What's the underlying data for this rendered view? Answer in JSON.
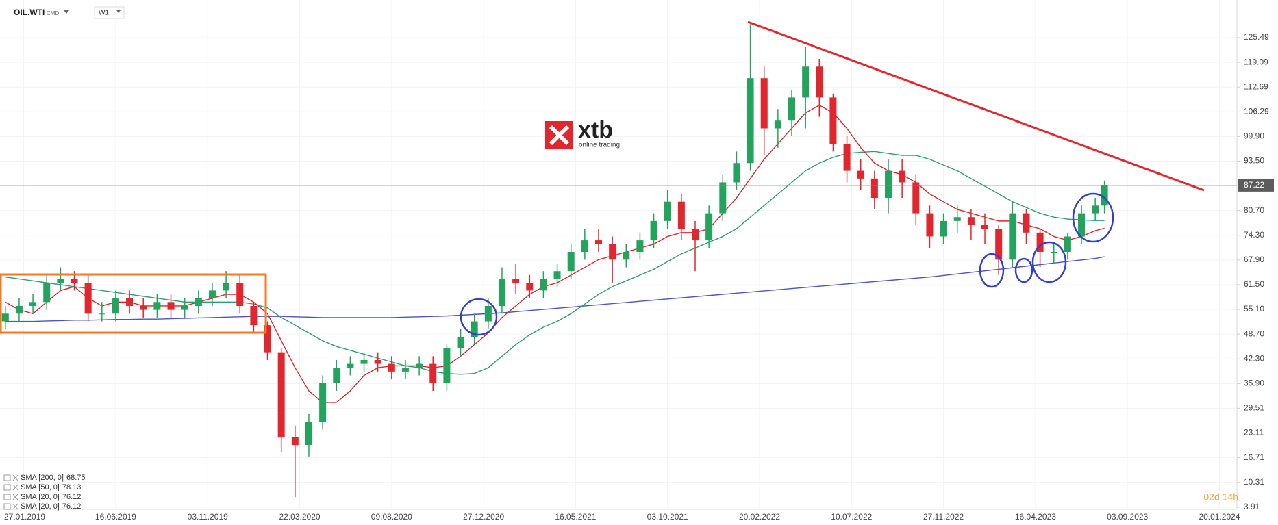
{
  "chart_data": {
    "type": "candlestick",
    "symbol": "OIL.WTI",
    "market": "CMD",
    "interval": "W1",
    "logo": {
      "name": "xtb",
      "tagline": "online trading"
    },
    "x": [
      0,
      3,
      6,
      9,
      12,
      15,
      18,
      21,
      24,
      27,
      30,
      33,
      36,
      39,
      42,
      45,
      48,
      51,
      54,
      57,
      60,
      63,
      66,
      69,
      72,
      75,
      78,
      81,
      84,
      87,
      90,
      93,
      96,
      99,
      102,
      105,
      108,
      111,
      114,
      117,
      120,
      123,
      126,
      129,
      132,
      135,
      138,
      141,
      144,
      147,
      150,
      153,
      156,
      159,
      162,
      165,
      168,
      171,
      174,
      177,
      180,
      183,
      186,
      189,
      192,
      195,
      198,
      201,
      204,
      207,
      210,
      213,
      216,
      219,
      222,
      225,
      228,
      231,
      234,
      237,
      239
    ],
    "open": [
      52,
      54,
      56,
      57,
      62,
      63,
      62,
      54,
      54,
      58,
      56,
      55,
      57,
      55,
      56,
      58,
      60,
      62,
      56,
      51,
      44,
      22,
      20,
      26,
      36,
      40,
      41,
      42,
      41,
      39,
      40,
      41,
      36,
      45,
      48,
      52,
      56,
      63,
      62,
      60,
      63,
      65,
      70,
      73,
      72,
      68,
      70,
      73,
      78,
      83,
      76,
      73,
      80,
      88,
      93,
      115,
      102,
      104,
      110,
      118,
      110,
      98,
      91,
      89,
      84,
      91,
      88,
      80,
      74,
      78,
      79,
      77,
      76,
      68,
      80,
      75,
      70,
      70,
      74,
      80,
      82
    ],
    "high": [
      56,
      58,
      59,
      64,
      66,
      65,
      64,
      57,
      60,
      60,
      58,
      59,
      59,
      58,
      60,
      62,
      65,
      64,
      57,
      52,
      45,
      25,
      28,
      38,
      42,
      43,
      44,
      44,
      43,
      42,
      43,
      43,
      46,
      50,
      54,
      58,
      66,
      67,
      64,
      65,
      67,
      72,
      76,
      76,
      74,
      72,
      75,
      80,
      86,
      85,
      78,
      82,
      90,
      96,
      129,
      118,
      107,
      112,
      123,
      120,
      111,
      100,
      94,
      91,
      94,
      94,
      90,
      82,
      80,
      82,
      81,
      80,
      77,
      83,
      81,
      76,
      72,
      75,
      82,
      84,
      88.5
    ],
    "low": [
      50,
      52,
      54,
      55,
      60,
      60,
      52,
      52,
      52,
      54,
      53,
      53,
      53,
      53,
      54,
      56,
      58,
      54,
      49,
      42,
      18,
      6.5,
      17,
      24,
      34,
      38,
      39,
      39,
      37,
      37,
      38,
      34,
      34,
      43,
      46,
      50,
      54,
      59,
      58,
      58,
      61,
      63,
      68,
      70,
      62,
      66,
      68,
      71,
      76,
      73,
      65,
      71,
      78,
      86,
      91,
      95,
      97,
      100,
      102,
      105,
      96,
      88,
      86,
      81,
      80,
      84,
      77,
      71,
      72,
      75,
      73,
      72,
      64,
      66,
      72,
      66,
      67,
      68,
      72,
      78,
      80
    ],
    "close": [
      54,
      56,
      57,
      62,
      63,
      62,
      54,
      54,
      58,
      56,
      55,
      57,
      55,
      56,
      58,
      60,
      62,
      56,
      51,
      44,
      22,
      20,
      26,
      36,
      40,
      41,
      42,
      41,
      39,
      40,
      41,
      36,
      45,
      48,
      52,
      56,
      63,
      62,
      60,
      63,
      65,
      70,
      73,
      72,
      68,
      70,
      73,
      78,
      83,
      76,
      73,
      80,
      88,
      93,
      115,
      102,
      104,
      110,
      118,
      110,
      98,
      91,
      89,
      84,
      91,
      88,
      80,
      74,
      78,
      79,
      77,
      76,
      68,
      80,
      75,
      70,
      70,
      74,
      80,
      82,
      87.22
    ],
    "up_color": "#22a45d",
    "down_color": "#e1262e",
    "sma": [
      {
        "color": "#4d55b8",
        "values": [
          52,
          52,
          52,
          52.1,
          52.2,
          52.3,
          52.3,
          52.4,
          52.5,
          52.5,
          52.6,
          52.6,
          52.7,
          52.8,
          52.9,
          53,
          53.1,
          53.2,
          53.3,
          53.3,
          53.3,
          53.2,
          53.1,
          53,
          53,
          53,
          53,
          53,
          53,
          53.1,
          53.2,
          53.3,
          53.4,
          53.6,
          53.8,
          54,
          54.2,
          54.5,
          54.8,
          55.1,
          55.4,
          55.7,
          56,
          56.3,
          56.6,
          56.9,
          57.2,
          57.5,
          57.8,
          58.1,
          58.4,
          58.7,
          59,
          59.3,
          59.6,
          59.9,
          60.2,
          60.5,
          60.8,
          61.1,
          61.4,
          61.7,
          62,
          62.3,
          62.6,
          62.9,
          63.2,
          63.5,
          63.9,
          64.3,
          64.7,
          65.1,
          65.5,
          65.9,
          66.3,
          66.7,
          67.1,
          67.5,
          67.9,
          68.3,
          68.75
        ]
      },
      {
        "color": "#2e9c78",
        "values": [
          63.5,
          63,
          62.5,
          62,
          61.5,
          61,
          60.5,
          60,
          59.5,
          59,
          58.5,
          58,
          57.5,
          57,
          57,
          57,
          57,
          57,
          56.5,
          55.5,
          53,
          51,
          49,
          47,
          45.5,
          44.5,
          43.5,
          42.5,
          41.5,
          40.5,
          40,
          39,
          38.5,
          38.3,
          38.5,
          40,
          43,
          46,
          48.5,
          50.5,
          52,
          54,
          56.5,
          59,
          61,
          62.5,
          64,
          65.5,
          67.5,
          69.5,
          71,
          72.5,
          74,
          76,
          79,
          82,
          85,
          88,
          91,
          93,
          94.5,
          95.5,
          95.8,
          96,
          95.5,
          95,
          95,
          94,
          92.5,
          91,
          89,
          87,
          85,
          83,
          81.5,
          80,
          79,
          78.5,
          78.3,
          78.1,
          78.13
        ]
      },
      {
        "color": "#d8262b",
        "values": [
          57,
          55,
          54,
          57,
          60,
          61,
          58,
          56,
          57,
          57,
          56,
          56,
          56,
          56,
          57,
          58,
          59,
          59,
          57,
          54,
          47,
          40,
          34,
          31,
          31,
          34,
          38,
          40,
          40.5,
          40.5,
          40.5,
          40,
          40.5,
          43,
          46,
          49,
          53,
          56,
          59,
          61,
          62,
          64,
          66,
          68,
          69,
          70,
          71,
          72,
          74,
          75,
          75,
          76,
          80,
          84,
          89,
          94,
          98,
          102,
          106,
          108,
          106,
          102,
          97,
          93,
          91,
          90,
          88,
          85,
          83,
          81,
          80,
          79,
          78,
          78,
          77,
          76,
          74,
          73,
          74,
          75.5,
          76.12
        ]
      }
    ],
    "legend": [
      {
        "label": "SMA [200, 0]",
        "value": 68.75
      },
      {
        "label": "SMA [50, 0]",
        "value": 78.13
      },
      {
        "label": "SMA [20, 0]",
        "value": 76.12
      },
      {
        "label": "SMA [20, 0]",
        "value": 76.12
      }
    ],
    "last_price": 87.22,
    "timer": "02d 14h",
    "xlim": [
      -1.16,
      267.8
    ],
    "xticks": [
      {
        "value": 4,
        "label": "27.01.2019"
      },
      {
        "value": 24,
        "label": "16.06.2019"
      },
      {
        "value": 44,
        "label": "03.11.2019"
      },
      {
        "value": 64,
        "label": "22.03.2020"
      },
      {
        "value": 84,
        "label": "09.08.2020"
      },
      {
        "value": 104,
        "label": "27.12.2020"
      },
      {
        "value": 124,
        "label": "16.05.2021"
      },
      {
        "value": 144,
        "label": "03.10.2021"
      },
      {
        "value": 164,
        "label": "20.02.2022"
      },
      {
        "value": 184,
        "label": "10.07.2022"
      },
      {
        "value": 204,
        "label": "27.11.2022"
      },
      {
        "value": 224,
        "label": "16.04.2023"
      },
      {
        "value": 244,
        "label": "03.09.2023"
      },
      {
        "value": 264,
        "label": "20.01.2024"
      }
    ],
    "ylim": [
      3.34,
      133.47
    ],
    "yticks": [
      125.49,
      119.09,
      112.69,
      106.29,
      {
        "value": 99.9,
        "label": "99.90"
      },
      {
        "value": 93.5,
        "label": "93.50"
      },
      {
        "value": 80.7,
        "label": "80.70"
      },
      {
        "value": 74.3,
        "label": "74.30"
      },
      {
        "value": 67.9,
        "label": "67.90"
      },
      {
        "value": 61.5,
        "label": "61.50"
      },
      {
        "value": 55.1,
        "label": "55.10"
      },
      {
        "value": 48.7,
        "label": "48.70"
      },
      {
        "value": 42.3,
        "label": "42.30"
      },
      {
        "value": 35.9,
        "label": "35.90"
      },
      29.51,
      23.11,
      16.71,
      10.31,
      3.91
    ],
    "grid": true
  }
}
